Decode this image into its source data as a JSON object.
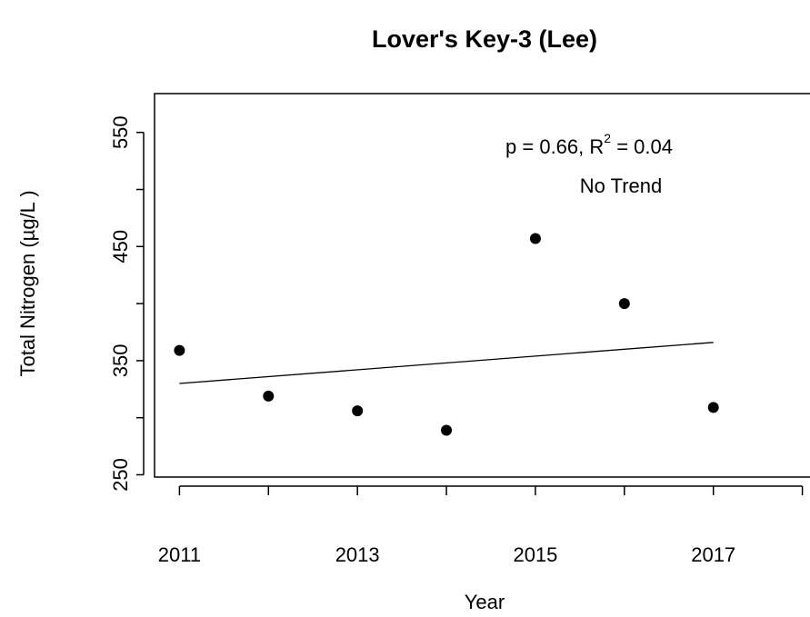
{
  "chart_data": {
    "type": "scatter",
    "title": "Lover's Key-3 (Lee)",
    "x_label": "Year",
    "y_label": "Total Nitrogen (µg/L )",
    "x": [
      2011,
      2012,
      2013,
      2014,
      2015,
      2016,
      2017
    ],
    "values": [
      359,
      319,
      306,
      289,
      457,
      400,
      309
    ],
    "color": "#000000",
    "trend": {
      "x": [
        2011,
        2017
      ],
      "values": [
        330,
        366
      ]
    },
    "annotation": [
      "p = 0.66, R",
      "2",
      " = 0.04"
    ],
    "annotation_note": "No Trend",
    "xlim": [
      2010.72,
      2018.28
    ],
    "ylim": [
      248,
      584
    ],
    "xticks": [
      2011,
      {
        "value": 2012,
        "label": null
      },
      2013,
      {
        "value": 2014,
        "label": null
      },
      2015,
      {
        "value": 2016,
        "label": null
      },
      2017,
      {
        "value": 2018,
        "label": null
      }
    ],
    "yticks": [
      250,
      {
        "value": 300,
        "label": null
      },
      350,
      {
        "value": 400,
        "label": null
      },
      450,
      {
        "value": 500,
        "label": null
      },
      550
    ]
  }
}
